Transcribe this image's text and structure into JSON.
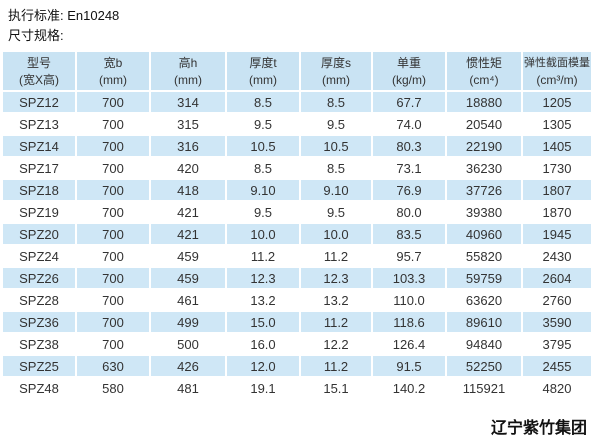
{
  "page": {
    "standard_line": "执行标准: En10248",
    "spec_line": "尺寸规格:",
    "footer": "辽宁紫竹集团"
  },
  "table": {
    "columns": [
      {
        "title": "型号",
        "unit": "(宽X高)"
      },
      {
        "title": "宽b",
        "unit": "(mm)"
      },
      {
        "title": "高h",
        "unit": "(mm)"
      },
      {
        "title": "厚度t",
        "unit": "(mm)"
      },
      {
        "title": "厚度s",
        "unit": "(mm)"
      },
      {
        "title": "单重",
        "unit": "(kg/m)"
      },
      {
        "title": "惯性矩",
        "unit": "(cm⁴)"
      },
      {
        "title": "弹性截面模量",
        "unit": "(cm³/m)"
      }
    ],
    "rows": [
      [
        "SPZ12",
        "700",
        "314",
        "8.5",
        "8.5",
        "67.7",
        "18880",
        "1205"
      ],
      [
        "SPZ13",
        "700",
        "315",
        "9.5",
        "9.5",
        "74.0",
        "20540",
        "1305"
      ],
      [
        "SPZ14",
        "700",
        "316",
        "10.5",
        "10.5",
        "80.3",
        "22190",
        "1405"
      ],
      [
        "SPZ17",
        "700",
        "420",
        "8.5",
        "8.5",
        "73.1",
        "36230",
        "1730"
      ],
      [
        "SPZ18",
        "700",
        "418",
        "9.10",
        "9.10",
        "76.9",
        "37726",
        "1807"
      ],
      [
        "SPZ19",
        "700",
        "421",
        "9.5",
        "9.5",
        "80.0",
        "39380",
        "1870"
      ],
      [
        "SPZ20",
        "700",
        "421",
        "10.0",
        "10.0",
        "83.5",
        "40960",
        "1945"
      ],
      [
        "SPZ24",
        "700",
        "459",
        "11.2",
        "11.2",
        "95.7",
        "55820",
        "2430"
      ],
      [
        "SPZ26",
        "700",
        "459",
        "12.3",
        "12.3",
        "103.3",
        "59759",
        "2604"
      ],
      [
        "SPZ28",
        "700",
        "461",
        "13.2",
        "13.2",
        "110.0",
        "63620",
        "2760"
      ],
      [
        "SPZ36",
        "700",
        "499",
        "15.0",
        "11.2",
        "118.6",
        "89610",
        "3590"
      ],
      [
        "SPZ38",
        "700",
        "500",
        "16.0",
        "12.2",
        "126.4",
        "94840",
        "3795"
      ],
      [
        "SPZ25",
        "630",
        "426",
        "12.0",
        "11.2",
        "91.5",
        "52250",
        "2455"
      ],
      [
        "SPZ48",
        "580",
        "481",
        "19.1",
        "15.1",
        "140.2",
        "115921",
        "4820"
      ]
    ]
  },
  "colors": {
    "row_blue": "#cfe7f6",
    "header_blue": "#c9e3f3",
    "text": "#333333"
  }
}
